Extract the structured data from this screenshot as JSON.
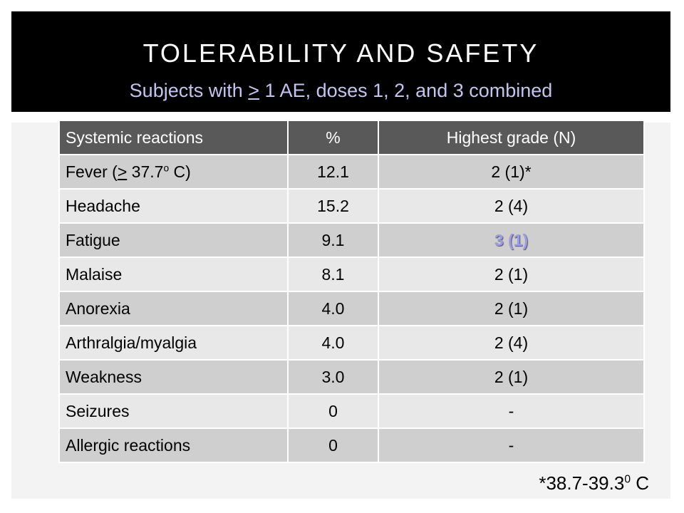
{
  "slide": {
    "title": "TOLERABILITY AND SAFETY",
    "subtitle": {
      "before": "Subjects with ",
      "symbol": ">",
      "after": " 1 AE, doses 1, 2, and 3 combined"
    }
  },
  "table": {
    "headers": {
      "reaction": "Systemic reactions",
      "percent": "%",
      "grade": "Highest grade (N)"
    },
    "rows": [
      {
        "reaction": {
          "prefix": "Fever (",
          "symbol": ">",
          "value": " 37.7",
          "sup": "o",
          "suffix": " C)"
        },
        "percent": "12.1",
        "grade": "2 (1)*"
      },
      {
        "reaction": "Headache",
        "percent": "15.2",
        "grade": "2 (4)"
      },
      {
        "reaction": "Fatigue",
        "percent": "9.1",
        "grade": "3 (1)",
        "emphasized": true
      },
      {
        "reaction": "Malaise",
        "percent": "8.1",
        "grade": "2 (1)"
      },
      {
        "reaction": "Anorexia",
        "percent": "4.0",
        "grade": "2 (1)"
      },
      {
        "reaction": "Arthralgia/myalgia",
        "percent": "4.0",
        "grade": "2 (4)"
      },
      {
        "reaction": "Weakness",
        "percent": "3.0",
        "grade": "2 (1)"
      },
      {
        "reaction": "Seizures",
        "percent": "0",
        "grade": "-"
      },
      {
        "reaction": "Allergic reactions",
        "percent": "0",
        "grade": "-"
      }
    ]
  },
  "footnote": {
    "before": "*38.7-39.3",
    "sup": "0",
    "after": " C"
  },
  "colors": {
    "title_bar": "#000000",
    "title_text": "#ffffff",
    "subtitle_text": "#c4c4f0",
    "panel": "#f3f3f3",
    "header_row": "#595959",
    "row_dark": "#cfcfcf",
    "row_light": "#e8e8e8",
    "highlight_text": "#9c9ce4"
  }
}
